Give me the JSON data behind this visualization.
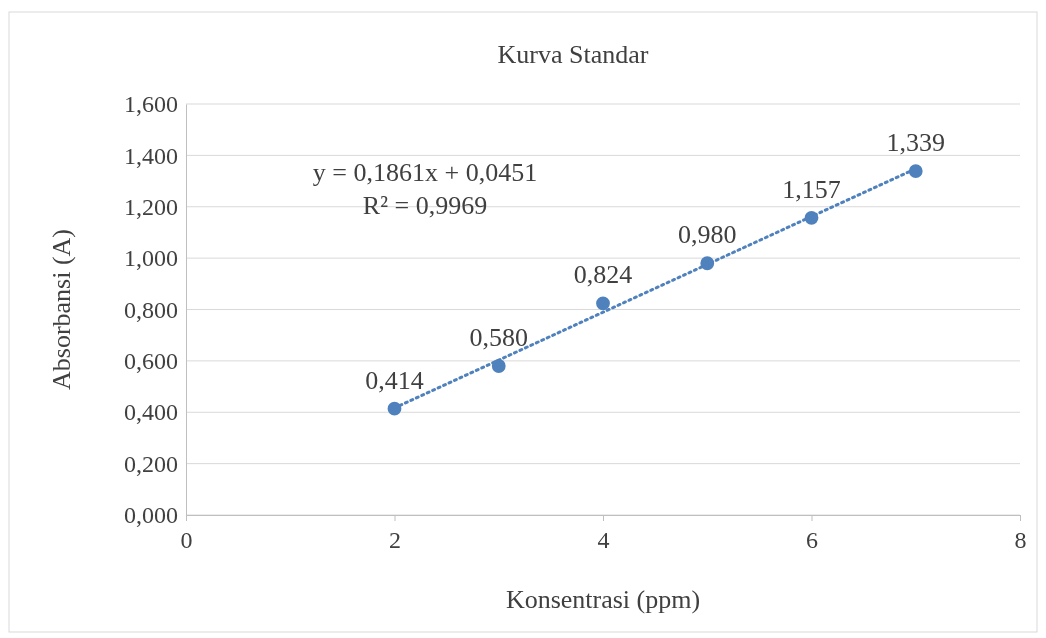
{
  "chart_data": {
    "type": "scatter",
    "title": "Kurva Standar",
    "xlabel": "Konsentrasi (ppm)",
    "ylabel": "Absorbansi (A)",
    "annotations": [
      "y = 0,1861x + 0,0451",
      "R² = 0,9969"
    ],
    "xlim": [
      0,
      8
    ],
    "xticks": [
      0,
      2,
      4,
      6,
      8
    ],
    "ylim": [
      0,
      1.6
    ],
    "yticks": [
      {
        "value": 0,
        "label": "0,000"
      },
      {
        "value": 0.2,
        "label": "0,200"
      },
      {
        "value": 0.4,
        "label": "0,400"
      },
      {
        "value": 0.6,
        "label": "0,600"
      },
      {
        "value": 0.8,
        "label": "0,800"
      },
      {
        "value": 1,
        "label": "1,000"
      },
      {
        "value": 1.2,
        "label": "1,200"
      },
      {
        "value": 1.4,
        "label": "1,400"
      },
      {
        "value": 1.6,
        "label": "1,600"
      }
    ],
    "grid": "y",
    "series": [
      {
        "type": "scatter",
        "marker": "circle",
        "color": "#4f81bd",
        "x": [
          2,
          3,
          4,
          5,
          6,
          7
        ],
        "values": [
          0.414,
          0.58,
          0.824,
          0.98,
          1.157,
          1.339
        ],
        "value_labels": [
          "0,414",
          "0,580",
          "0,824",
          "0,980",
          "1,157",
          "1,339"
        ]
      },
      {
        "type": "line",
        "color": "#4f81bd",
        "line_style": "dotted",
        "x": [
          2,
          7
        ],
        "values": [
          0.417,
          1.348
        ]
      }
    ]
  }
}
